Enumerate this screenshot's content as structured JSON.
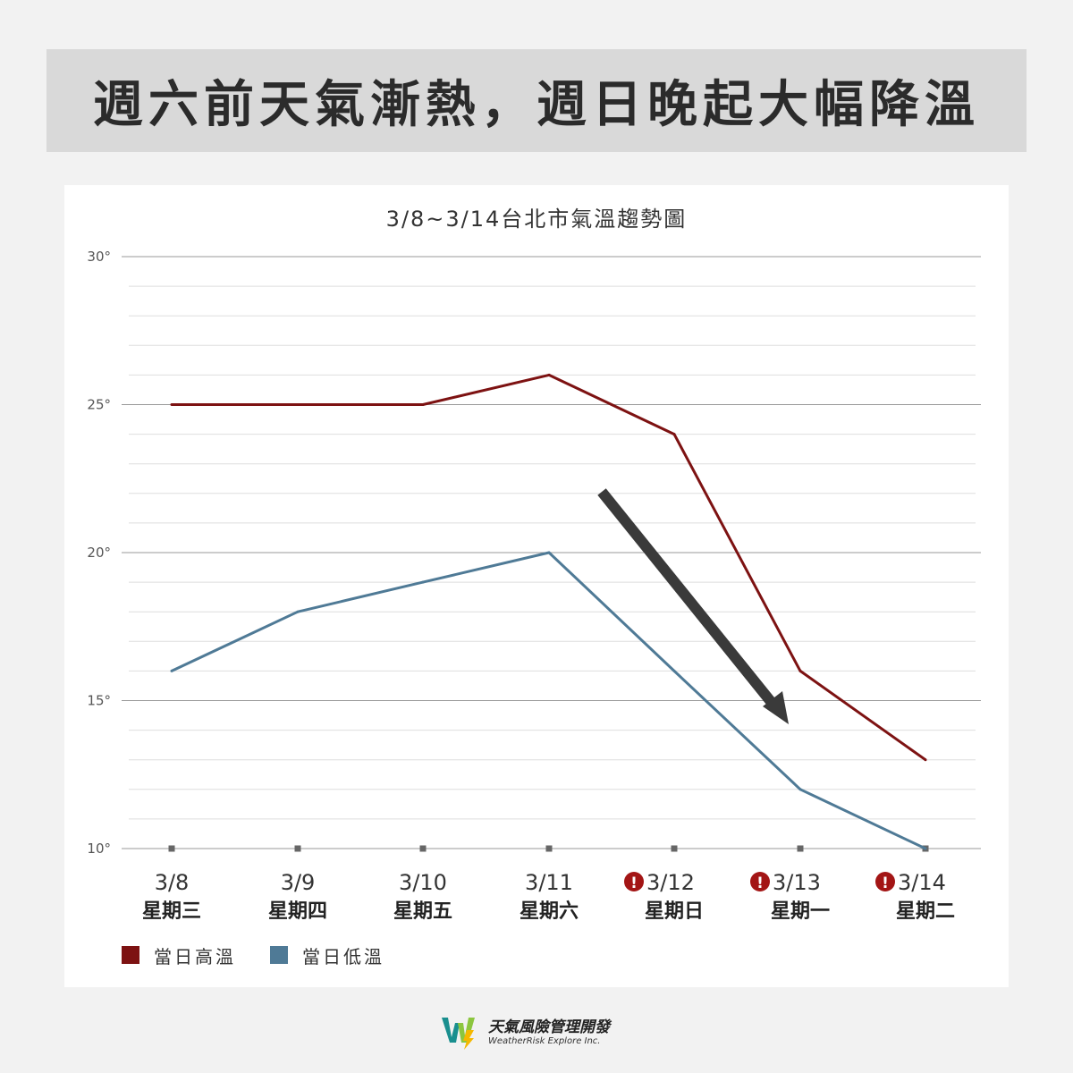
{
  "header": {
    "title": "週六前天氣漸熱，週日晚起大幅降溫"
  },
  "chart_data": {
    "type": "line",
    "title": "3/8~3/14台北市氣溫趨勢圖",
    "categories": [
      "3/8",
      "3/9",
      "3/10",
      "3/11",
      "3/12",
      "3/13",
      "3/14"
    ],
    "weekdays": [
      "星期三",
      "星期四",
      "星期五",
      "星期六",
      "星期日",
      "星期一",
      "星期二"
    ],
    "warning_flags": [
      false,
      false,
      false,
      false,
      true,
      true,
      true
    ],
    "y_ticks": [
      "10°",
      "15°",
      "20°",
      "25°",
      "30°"
    ],
    "ylim": [
      10,
      30
    ],
    "grid": true,
    "series": [
      {
        "name": "當日高溫",
        "color": "#7d1212",
        "values": [
          25,
          25,
          25,
          26,
          24,
          16,
          13
        ]
      },
      {
        "name": "當日低溫",
        "color": "#4f7a96",
        "values": [
          16,
          18,
          19,
          20,
          16,
          12,
          10
        ]
      }
    ],
    "annotation": {
      "type": "arrow",
      "meaning": "downward temperature trend",
      "color": "#3a3a3a"
    }
  },
  "footer": {
    "brand": "天氣風險管理開發",
    "sub": "WeatherRisk Explore Inc.",
    "logo_colors": {
      "w_teal": "#1a8f8f",
      "w_green": "#8cc63f",
      "bolt": "#f5b800"
    }
  }
}
